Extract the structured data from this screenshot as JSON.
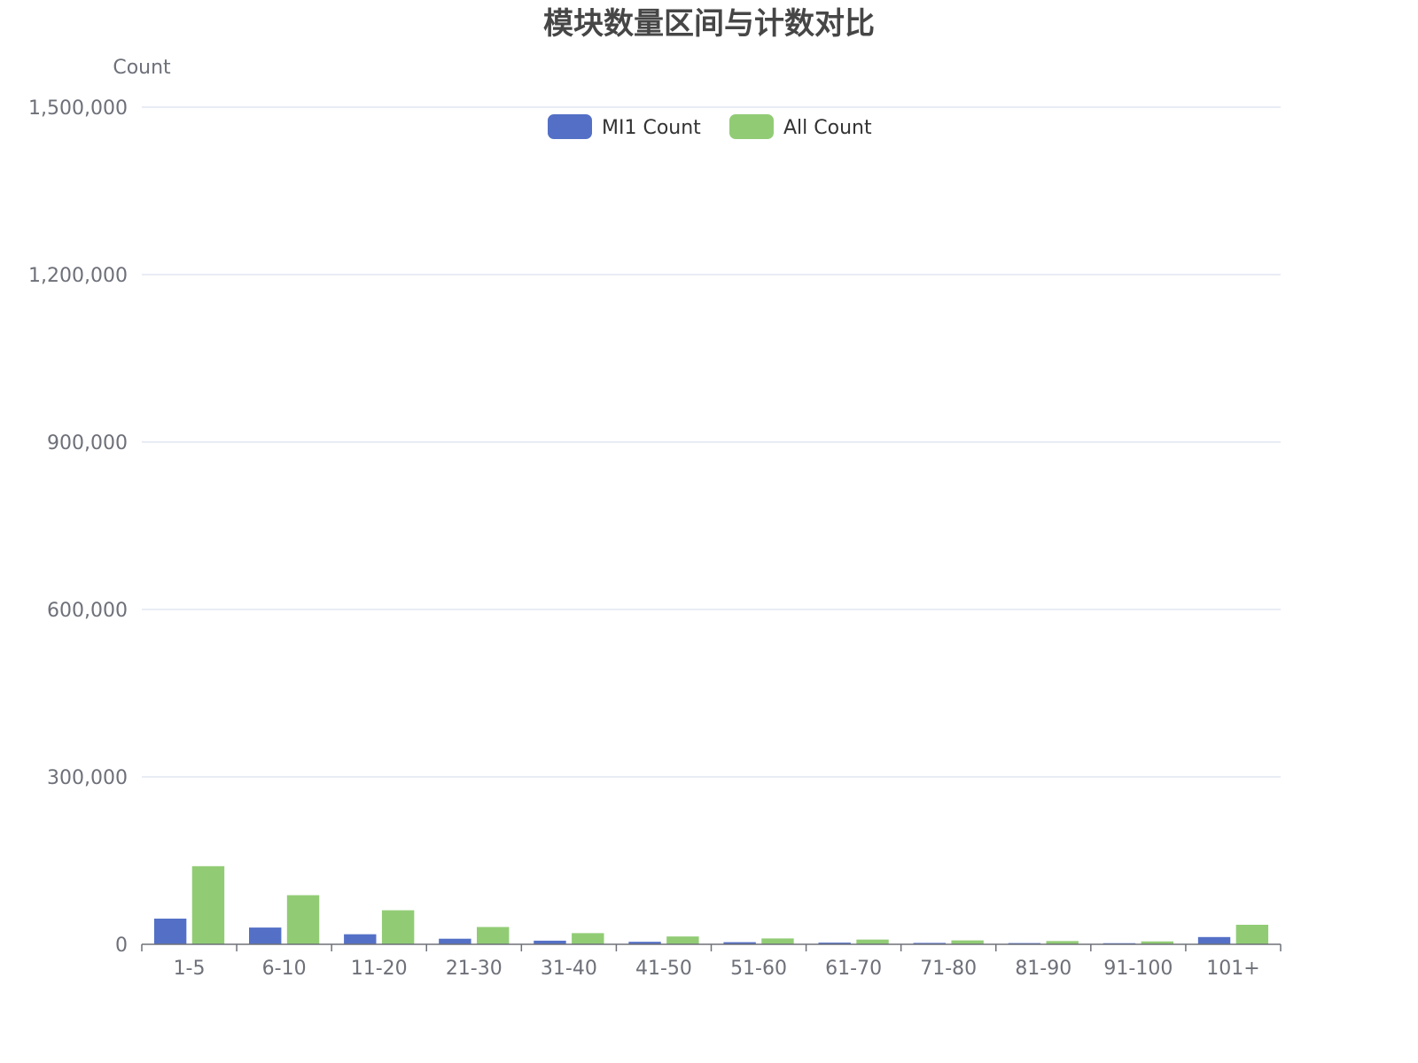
{
  "chart_data": {
    "type": "bar",
    "title": "模块数量区间与计数对比",
    "xlabel": "",
    "ylabel": "Count",
    "ylim": [
      0,
      1500000
    ],
    "yticks": [
      0,
      300000,
      600000,
      900000,
      1200000,
      1500000
    ],
    "ytick_labels": [
      "0",
      "300,000",
      "600,000",
      "900,000",
      "1,200,000",
      "1,500,000"
    ],
    "grid": true,
    "legend_position": "top-center",
    "categories": [
      "1-5",
      "6-10",
      "11-20",
      "21-30",
      "31-40",
      "41-50",
      "51-60",
      "61-70",
      "71-80",
      "81-90",
      "91-100",
      "101+"
    ],
    "series": [
      {
        "name": "MI1 Count",
        "color": "#5470c6",
        "values": [
          46000,
          30000,
          18000,
          10000,
          6500,
          4500,
          3800,
          3000,
          2500,
          2200,
          2000,
          13000
        ]
      },
      {
        "name": "All Count",
        "color": "#91cc75",
        "values": [
          140000,
          88000,
          61000,
          31000,
          20000,
          14000,
          10500,
          8500,
          7000,
          5800,
          5200,
          35000
        ]
      }
    ]
  }
}
